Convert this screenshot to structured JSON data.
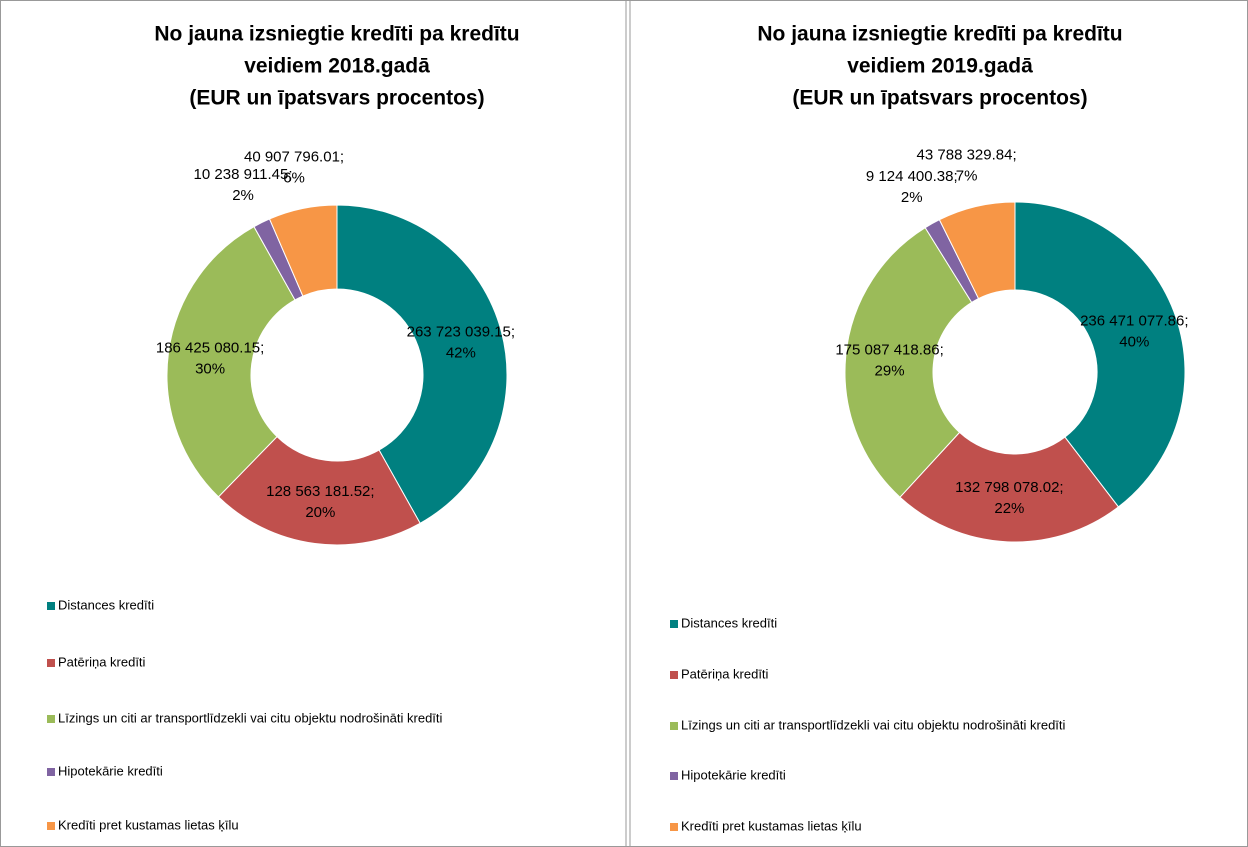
{
  "chart_data": [
    {
      "type": "donut",
      "title": [
        "No jauna izsniegtie kredīti pa kredītu",
        "veidiem 2018.gadā",
        "(EUR un īpatsvars procentos)"
      ],
      "categories": [
        "Distances kredīti",
        "Patēriņa kredīti",
        "Līzings un citi ar transportlīdzekli vai citu objektu nodrošināti kredīti",
        "Hipotekārie kredīti",
        "Kredīti pret kustamas lietas ķīlu"
      ],
      "values": [
        263723039.15,
        128563181.52,
        186425080.15,
        10238911.45,
        40907796.01
      ],
      "value_labels": [
        "263 723 039.15; 42%",
        "128 563 181.52; 20%",
        "186 425 080.15; 30%",
        "10 238 911.45; 2%",
        "40 907 796.01; 6%"
      ],
      "colors": [
        "#008080",
        "#c0504d",
        "#9bbb59",
        "#8064a2",
        "#f79646"
      ],
      "legend": "bottom"
    },
    {
      "type": "donut",
      "title": [
        "No jauna izsniegtie kredīti pa kredītu",
        "veidiem 2019.gadā",
        "(EUR un īpatsvars procentos)"
      ],
      "categories": [
        "Distances kredīti",
        "Patēriņa kredīti",
        "Līzings un citi ar transportlīdzekli vai citu objektu nodrošināti kredīti",
        "Hipotekārie kredīti",
        "Kredīti pret kustamas lietas ķīlu"
      ],
      "values": [
        236471077.86,
        132798078.02,
        175087418.86,
        9124400.38,
        43788329.84
      ],
      "value_labels": [
        "236 471 077.86; 40%",
        "132 798 078.02; 22%",
        "175 087 418.86; 29%",
        "9 124 400.38; 2%",
        "43 788 329.84; 7%"
      ],
      "colors": [
        "#008080",
        "#c0504d",
        "#9bbb59",
        "#8064a2",
        "#f79646"
      ],
      "legend": "bottom"
    }
  ]
}
